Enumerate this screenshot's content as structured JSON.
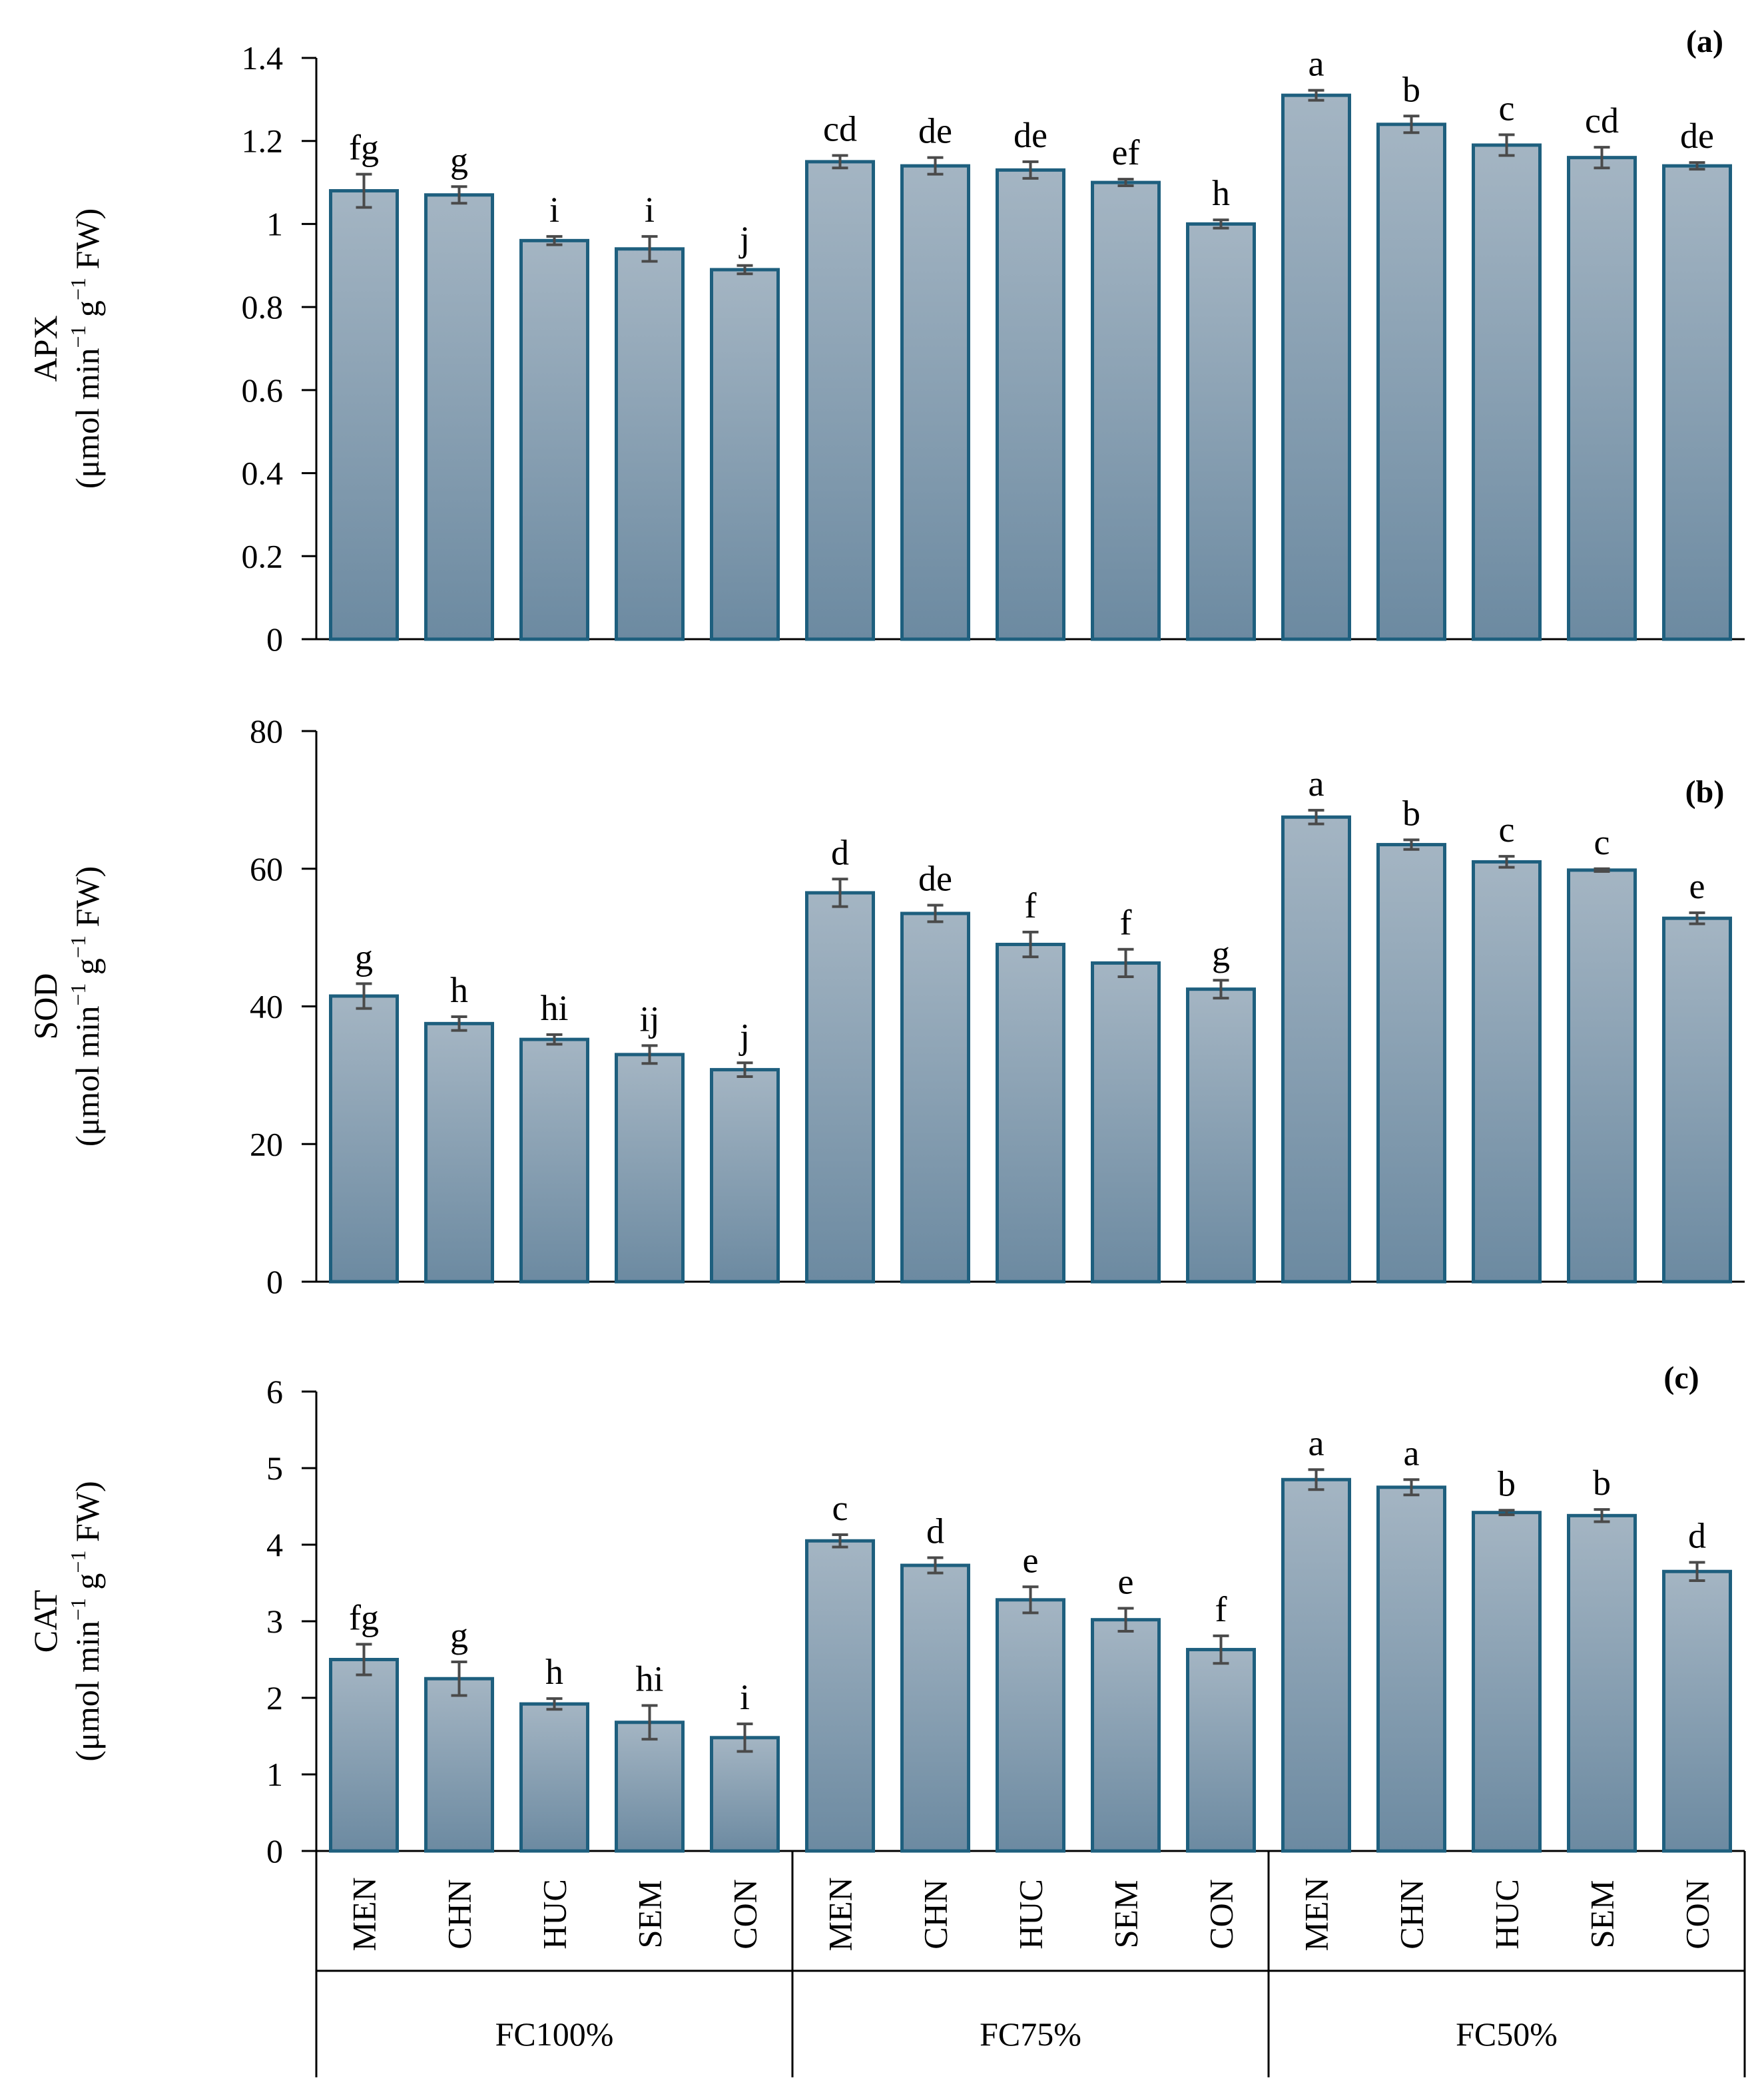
{
  "chart_data": {
    "type": "bar",
    "groups": [
      "FC100%",
      "FC75%",
      "FC50%"
    ],
    "categories": [
      "MEN",
      "CHN",
      "HUC",
      "SEM",
      "CON"
    ],
    "colors": {
      "bar_top": "#a4b5c3",
      "bar_bottom": "#6c8aa1",
      "bar_edge": "#1e5f7e",
      "error": "#4a4a4a"
    },
    "panels": [
      {
        "id": "apx",
        "panel_label": "(a)",
        "ylabel_line1": "APX",
        "ylabel_line2_pre": "(μmol min",
        "ylabel_sup1": "−1",
        "ylabel_line2_mid": " g",
        "ylabel_sup2": "−1",
        "ylabel_line2_post": " FW)",
        "ylim": [
          0,
          1.4
        ],
        "ytick_values": [
          0,
          0.2,
          0.4,
          0.6,
          0.8,
          1,
          1.2,
          1.4
        ],
        "ytick_labels": [
          "0",
          "0.2",
          "0.4",
          "0.6",
          "0.8",
          "1",
          "1.2",
          "1.4"
        ],
        "values": [
          1.08,
          1.07,
          0.96,
          0.94,
          0.89,
          1.15,
          1.14,
          1.13,
          1.1,
          1.0,
          1.31,
          1.24,
          1.19,
          1.16,
          1.14
        ],
        "errors": [
          0.04,
          0.02,
          0.01,
          0.03,
          0.01,
          0.015,
          0.02,
          0.02,
          0.008,
          0.01,
          0.012,
          0.02,
          0.025,
          0.025,
          0.008
        ],
        "letters": [
          "fg",
          "g",
          "i",
          "i",
          "j",
          "cd",
          "de",
          "de",
          "ef",
          "h",
          "a",
          "b",
          "c",
          "cd",
          "de"
        ]
      },
      {
        "id": "sod",
        "panel_label": "(b)",
        "ylabel_line1": "SOD",
        "ylabel_line2_pre": "(μmol min",
        "ylabel_sup1": "−1",
        "ylabel_line2_mid": " g",
        "ylabel_sup2": "−1",
        "ylabel_line2_post": " FW)",
        "ylim": [
          0,
          80
        ],
        "ytick_values": [
          0,
          20,
          40,
          60,
          80
        ],
        "ytick_labels": [
          "0",
          "20",
          "40",
          "60",
          "80"
        ],
        "values": [
          41.5,
          37.5,
          35.2,
          33.0,
          30.8,
          56.5,
          53.5,
          49.0,
          46.3,
          42.5,
          67.5,
          63.5,
          61.0,
          59.8,
          52.8
        ],
        "errors": [
          1.8,
          1.0,
          0.7,
          1.3,
          1.0,
          2.0,
          1.2,
          1.8,
          2.0,
          1.3,
          1.0,
          0.7,
          0.8,
          0.2,
          0.8
        ],
        "letters": [
          "g",
          "h",
          "hi",
          "ij",
          "j",
          "d",
          "de",
          "f",
          "f",
          "g",
          "a",
          "b",
          "c",
          "c",
          "e"
        ]
      },
      {
        "id": "cat",
        "panel_label": "(c)",
        "ylabel_line1": "CAT",
        "ylabel_line2_pre": "(μmol min",
        "ylabel_sup1": "−1",
        "ylabel_line2_mid": " g",
        "ylabel_sup2": "−1",
        "ylabel_line2_post": " FW)",
        "ylim": [
          0,
          6
        ],
        "ytick_values": [
          0,
          1,
          2,
          3,
          4,
          5,
          6
        ],
        "ytick_labels": [
          "0",
          "1",
          "2",
          "3",
          "4",
          "5",
          "6"
        ],
        "values": [
          2.5,
          2.25,
          1.92,
          1.68,
          1.48,
          4.05,
          3.73,
          3.28,
          3.02,
          2.63,
          4.85,
          4.75,
          4.42,
          4.38,
          3.65
        ],
        "errors": [
          0.2,
          0.22,
          0.07,
          0.22,
          0.18,
          0.08,
          0.1,
          0.17,
          0.15,
          0.18,
          0.13,
          0.1,
          0.03,
          0.08,
          0.12
        ],
        "letters": [
          "fg",
          "g",
          "h",
          "hi",
          "i",
          "c",
          "d",
          "e",
          "e",
          "f",
          "a",
          "a",
          "b",
          "b",
          "d"
        ]
      }
    ]
  }
}
